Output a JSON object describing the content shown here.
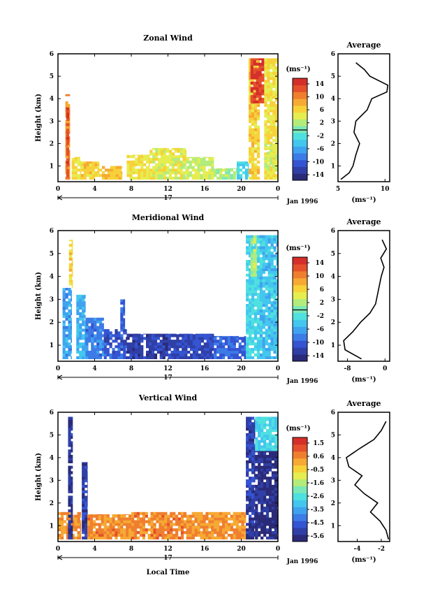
{
  "chart_data": [
    {
      "type": "heatmap",
      "title": "Zonal Wind",
      "ylabel": "Height (km)",
      "xticks": [
        "0",
        "4",
        "8",
        "12",
        "16",
        "20",
        "0"
      ],
      "yticks": [
        "1",
        "2",
        "3",
        "4",
        "5",
        "6"
      ],
      "day_label": "17",
      "date_label": "Jan 1996",
      "colorbar_title": "(ms⁻¹)",
      "colorbar_ticks": [
        "14",
        "10",
        "6",
        "2",
        "-2",
        "-6",
        "-10",
        "-14"
      ],
      "xlim": [
        0,
        24
      ],
      "ylim": [
        0.3,
        6
      ],
      "blocks": [
        {
          "t": [
            0.8,
            1.3
          ],
          "h": [
            0.4,
            4.2
          ],
          "v": 9
        },
        {
          "t": [
            0.9,
            1.2
          ],
          "h": [
            0.5,
            3.6
          ],
          "v": 13
        },
        {
          "t": [
            1.5,
            2.5
          ],
          "h": [
            0.4,
            1.4
          ],
          "v": 5
        },
        {
          "t": [
            2.5,
            4.5
          ],
          "h": [
            0.4,
            1.2
          ],
          "v": 6
        },
        {
          "t": [
            4.5,
            7.0
          ],
          "h": [
            0.4,
            1.0
          ],
          "v": 7
        },
        {
          "t": [
            7.5,
            10.0
          ],
          "h": [
            0.4,
            1.5
          ],
          "v": 5
        },
        {
          "t": [
            10.0,
            14.0
          ],
          "h": [
            0.4,
            1.8
          ],
          "v": 4
        },
        {
          "t": [
            14.0,
            17.0
          ],
          "h": [
            0.4,
            1.4
          ],
          "v": 3
        },
        {
          "t": [
            17.0,
            19.5
          ],
          "h": [
            0.4,
            0.9
          ],
          "v": 2
        },
        {
          "t": [
            19.5,
            20.8
          ],
          "h": [
            0.4,
            1.2
          ],
          "v": -3
        },
        {
          "t": [
            20.8,
            22.0
          ],
          "h": [
            0.4,
            5.8
          ],
          "v": 6
        },
        {
          "t": [
            21.0,
            22.5
          ],
          "h": [
            3.8,
            5.8
          ],
          "v": 13
        },
        {
          "t": [
            22.5,
            24.0
          ],
          "h": [
            0.4,
            5.8
          ],
          "v": 5
        },
        {
          "t": [
            22.5,
            24.0
          ],
          "h": [
            0.8,
            2.0
          ],
          "v": 3
        }
      ],
      "profile": {
        "title": "Average",
        "xlabel": "(ms⁻¹)",
        "xticks": [
          "5",
          "10"
        ],
        "xlim": [
          5,
          10.5
        ],
        "heights": [
          0.4,
          0.7,
          1.0,
          1.5,
          2.0,
          2.5,
          3.0,
          3.5,
          4.0,
          4.3,
          4.6,
          5.0,
          5.3,
          5.6
        ],
        "values": [
          5.3,
          6.2,
          6.6,
          6.9,
          7.3,
          6.7,
          6.9,
          8.1,
          8.6,
          10.2,
          10.3,
          8.4,
          7.8,
          6.9
        ]
      }
    },
    {
      "type": "heatmap",
      "title": "Meridional Wind",
      "ylabel": "Height (km)",
      "xticks": [
        "0",
        "4",
        "8",
        "12",
        "16",
        "20",
        "0"
      ],
      "yticks": [
        "1",
        "2",
        "3",
        "4",
        "5",
        "6"
      ],
      "day_label": "17",
      "date_label": "Jan 1996",
      "colorbar_title": "(ms⁻¹)",
      "colorbar_ticks": [
        "14",
        "10",
        "6",
        "2",
        "-2",
        "-6",
        "-10",
        "-14"
      ],
      "xlim": [
        0,
        24
      ],
      "ylim": [
        0.3,
        6
      ],
      "blocks": [
        {
          "t": [
            0.5,
            1.5
          ],
          "h": [
            0.4,
            3.5
          ],
          "v": -6
        },
        {
          "t": [
            1.2,
            1.6
          ],
          "h": [
            3.5,
            5.6
          ],
          "v": 6
        },
        {
          "t": [
            2.0,
            3.0
          ],
          "h": [
            0.4,
            3.2
          ],
          "v": -5
        },
        {
          "t": [
            3.0,
            5.0
          ],
          "h": [
            0.4,
            2.2
          ],
          "v": -8
        },
        {
          "t": [
            5.0,
            7.5
          ],
          "h": [
            0.4,
            1.7
          ],
          "v": -10
        },
        {
          "t": [
            6.8,
            7.3
          ],
          "h": [
            1.7,
            3.0
          ],
          "v": -9
        },
        {
          "t": [
            7.5,
            12.0
          ],
          "h": [
            0.4,
            1.5
          ],
          "v": -12
        },
        {
          "t": [
            12.0,
            17.0
          ],
          "h": [
            0.4,
            1.5
          ],
          "v": -11
        },
        {
          "t": [
            17.0,
            20.5
          ],
          "h": [
            0.4,
            1.4
          ],
          "v": -9
        },
        {
          "t": [
            20.5,
            22.0
          ],
          "h": [
            0.4,
            5.8
          ],
          "v": -3
        },
        {
          "t": [
            21.0,
            21.7
          ],
          "h": [
            4.0,
            5.8
          ],
          "v": 2
        },
        {
          "t": [
            22.0,
            24.0
          ],
          "h": [
            0.4,
            5.8
          ],
          "v": -4
        }
      ],
      "profile": {
        "title": "Average",
        "xlabel": "(ms⁻¹)",
        "xticks": [
          "-8",
          "0"
        ],
        "xlim": [
          -10,
          1
        ],
        "heights": [
          0.4,
          0.8,
          1.2,
          1.6,
          2.0,
          2.4,
          2.8,
          3.2,
          3.6,
          4.0,
          4.4,
          4.8,
          5.2,
          5.6
        ],
        "values": [
          -5,
          -8.5,
          -8.8,
          -6.8,
          -5.2,
          -3.2,
          -2.0,
          -1.6,
          -1.2,
          -0.8,
          -0.2,
          -0.9,
          0.3,
          -0.6
        ]
      }
    },
    {
      "type": "heatmap",
      "title": "Vertical Wind",
      "ylabel": "Height (km)",
      "xlabel": "Local Time",
      "xticks": [
        "0",
        "4",
        "8",
        "12",
        "16",
        "20",
        "0"
      ],
      "yticks": [
        "1",
        "2",
        "3",
        "4",
        "5",
        "6"
      ],
      "day_label": "17",
      "date_label": "Jan 1996",
      "colorbar_title": "(ms⁻¹)",
      "colorbar_ticks": [
        "1.5",
        "0.6",
        "-0.5",
        "-1.6",
        "-2.6",
        "-3.5",
        "-4.5",
        "-5.6"
      ],
      "xlim": [
        0,
        24
      ],
      "ylim": [
        0.3,
        6
      ],
      "blocks": [
        {
          "t": [
            0.0,
            2.5
          ],
          "h": [
            0.4,
            1.6
          ],
          "v": 0.4
        },
        {
          "t": [
            1.1,
            1.6
          ],
          "h": [
            0.4,
            5.8
          ],
          "v": -5.4
        },
        {
          "t": [
            2.6,
            3.2
          ],
          "h": [
            0.4,
            3.8
          ],
          "v": -5.2
        },
        {
          "t": [
            3.2,
            8.0
          ],
          "h": [
            0.4,
            1.5
          ],
          "v": 0.5
        },
        {
          "t": [
            8.0,
            14.0
          ],
          "h": [
            0.4,
            1.6
          ],
          "v": 0.6
        },
        {
          "t": [
            14.0,
            20.5
          ],
          "h": [
            0.4,
            1.6
          ],
          "v": 0.4
        },
        {
          "t": [
            20.5,
            21.5
          ],
          "h": [
            0.4,
            5.8
          ],
          "v": -5.2
        },
        {
          "t": [
            21.5,
            24.0
          ],
          "h": [
            0.4,
            4.3
          ],
          "v": -5.6
        },
        {
          "t": [
            21.5,
            24.0
          ],
          "h": [
            4.3,
            5.8
          ],
          "v": -2.8
        }
      ],
      "profile": {
        "title": "Average",
        "xlabel": "(ms⁻¹)",
        "xticks": [
          "-4",
          "-2"
        ],
        "xlim": [
          -5.6,
          -1.3
        ],
        "heights": [
          0.4,
          0.8,
          1.2,
          1.6,
          2.0,
          2.4,
          2.8,
          3.2,
          3.6,
          4.0,
          4.4,
          4.8,
          5.2,
          5.6
        ],
        "values": [
          -1.4,
          -1.6,
          -2.1,
          -2.9,
          -2.3,
          -3.4,
          -4.2,
          -3.6,
          -4.7,
          -4.9,
          -3.8,
          -2.6,
          -2.0,
          -1.6
        ]
      }
    }
  ]
}
